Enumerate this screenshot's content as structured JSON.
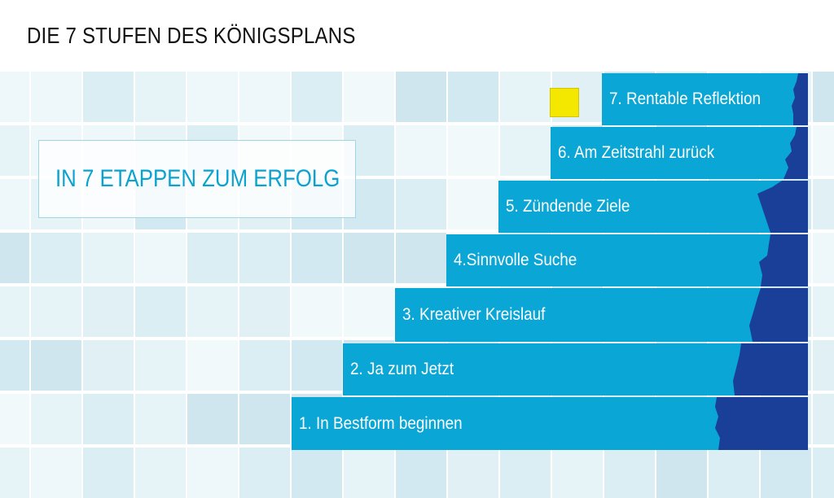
{
  "title": "DIE 7 STUFEN DES KÖNIGSPLANS",
  "callout": "IN 7 ETAPPEN ZUM ERFOLG",
  "steps": [
    {
      "label": "1. In Bestform beginnen"
    },
    {
      "label": "2. Ja zum Jetzt"
    },
    {
      "label": "3. Kreativer Kreislauf"
    },
    {
      "label": "4.Sinnvolle Suche"
    },
    {
      "label": "5. Zündende Ziele"
    },
    {
      "label": "6. Am Zeitstrahl zurück"
    },
    {
      "label": "7. Rentable Reflektion"
    }
  ],
  "colors": {
    "step_fill": "#0aa6d6",
    "dark_shape": "#1a3f99",
    "callout_text": "#0aa3d0",
    "marker": "#f5e800"
  }
}
